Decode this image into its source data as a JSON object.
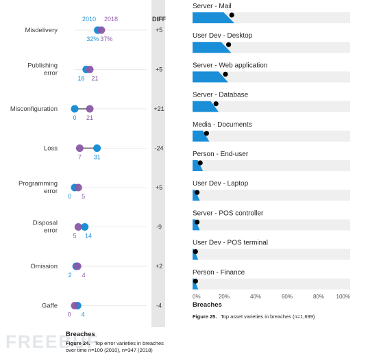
{
  "colors": {
    "y2010": "#1a8fd6",
    "y2018": "#8a5aa8",
    "connector": "#808080",
    "diff_band": "#e6e6e6",
    "bar": "#1b8ed8",
    "bar_track": "#efefef",
    "marker": "#000000"
  },
  "watermark": "FREEBUF",
  "chart_data": [
    {
      "type": "dumbbell",
      "legend": [
        "2010",
        "2018"
      ],
      "diff_header": "DIFF",
      "section_title": "Breaches",
      "caption_bold": "Figure 24.",
      "caption_line1": "Top error varieties in breaches",
      "caption_line2": "over time n=100 (2010), n=347 (2018)",
      "series": [
        {
          "name": "2010",
          "values": [
            32,
            16,
            0,
            31,
            0,
            14,
            2,
            4
          ]
        },
        {
          "name": "2018",
          "values": [
            37,
            21,
            21,
            7,
            5,
            5,
            4,
            0
          ]
        }
      ],
      "rows": [
        {
          "label": [
            "Misdelivery"
          ],
          "v2010": 32,
          "v2018": 37,
          "lbl2010": "32%",
          "lbl2018": "37%",
          "diff": "+5"
        },
        {
          "label": [
            "Publishing",
            "error"
          ],
          "v2010": 16,
          "v2018": 21,
          "lbl2010": "16",
          "lbl2018": "21",
          "diff": "+5"
        },
        {
          "label": [
            "Misconfiguration"
          ],
          "v2010": 0,
          "v2018": 21,
          "lbl2010": "0",
          "lbl2018": "21",
          "diff": "+21"
        },
        {
          "label": [
            "Loss"
          ],
          "v2010": 31,
          "v2018": 7,
          "lbl2010": "31",
          "lbl2018": "7",
          "diff": "-24"
        },
        {
          "label": [
            "Programming",
            "error"
          ],
          "v2010": 0,
          "v2018": 5,
          "lbl2010": "0",
          "lbl2018": "5",
          "diff": "+5"
        },
        {
          "label": [
            "Disposal",
            "error"
          ],
          "v2010": 14,
          "v2018": 5,
          "lbl2010": "14",
          "lbl2018": "5",
          "diff": "-9"
        },
        {
          "label": [
            "Omission"
          ],
          "v2010": 2,
          "v2018": 4,
          "lbl2010": "2",
          "lbl2018": "4",
          "diff": "+2"
        },
        {
          "label": [
            "Gaffe"
          ],
          "v2010": 4,
          "v2018": 0,
          "lbl2010": "4",
          "lbl2018": "0",
          "diff": "-4"
        }
      ]
    },
    {
      "type": "bar",
      "orientation": "horizontal",
      "categories": [
        "Server - Mail",
        "User Dev - Desktop",
        "Server - Web application",
        "Server - Database",
        "Media - Documents",
        "Person - End-user",
        "User Dev - Laptop",
        "Server - POS controller",
        "User Dev - POS terminal",
        "Person - Finance"
      ],
      "values": [
        24,
        22,
        20,
        14,
        8,
        4,
        2,
        2,
        1,
        1
      ],
      "xlim": [
        0,
        100
      ],
      "ticks": [
        "0%",
        "20%",
        "40%",
        "60%",
        "80%",
        "100%"
      ],
      "tick_values": [
        0,
        20,
        40,
        60,
        80,
        100
      ],
      "xlabel": "Breaches",
      "caption_bold": "Figure 25.",
      "caption_text": "Top asset varieties in breaches (n=1,699)"
    }
  ]
}
